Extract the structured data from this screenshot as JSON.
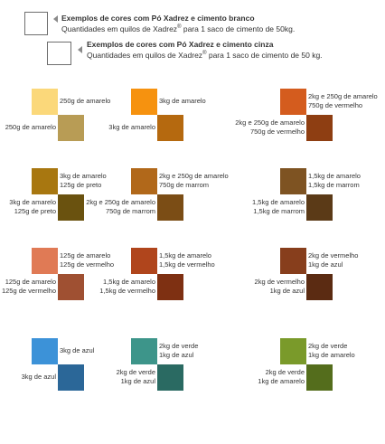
{
  "legend": [
    {
      "title": "Exemplos de cores com Pó Xadrez e cimento branco",
      "sub_before": "Quantidades em quilos de Xadrez",
      "sup": "®",
      "sub_after": " para 1 saco de cimento de 50kg."
    },
    {
      "title": "Exemplos de cores com Pó Xadrez e cimento cinza",
      "sub_before": "Quantidades em quilos de Xadrez",
      "sup": "®",
      "sub_after": " para 1 saco de cimento de 50 kg."
    }
  ],
  "swatches": [
    {
      "top_color": "#fbd87a",
      "bottom_color": "#b89c55",
      "top_lines": [
        "250g de amarelo"
      ],
      "bottom_lines": [
        "250g de amarelo"
      ]
    },
    {
      "top_color": "#f6920f",
      "bottom_color": "#b5690f",
      "top_lines": [
        "3kg de amarelo"
      ],
      "bottom_lines": [
        "3kg de amarelo"
      ]
    },
    {
      "top_color": "#d45c1e",
      "bottom_color": "#8e3e12",
      "top_lines": [
        "2kg e 250g de amarelo",
        "750g de vermelho"
      ],
      "bottom_lines": [
        "2kg e 250g de amarelo",
        "750g de vermelho"
      ]
    },
    {
      "top_color": "#a87710",
      "bottom_color": "#6a520f",
      "top_lines": [
        "3kg de amarelo",
        "125g de preto"
      ],
      "bottom_lines": [
        "3kg de amarelo",
        "125g de preto"
      ]
    },
    {
      "top_color": "#b1681a",
      "bottom_color": "#7b4d15",
      "top_lines": [
        "2kg e 250g de amarelo",
        "750g de marrom"
      ],
      "bottom_lines": [
        "2kg e 250g de amarelo",
        "750g de marrom"
      ]
    },
    {
      "top_color": "#7e5322",
      "bottom_color": "#5b3a17",
      "top_lines": [
        "1,5kg de amarelo",
        "1,5kg de marrom"
      ],
      "bottom_lines": [
        "1,5kg de amarelo",
        "1,5kg de marrom"
      ]
    },
    {
      "top_color": "#e07a55",
      "bottom_color": "#9f5032",
      "top_lines": [
        "125g de amarelo",
        "125g de vermelho"
      ],
      "bottom_lines": [
        "125g de amarelo",
        "125g de vermelho"
      ]
    },
    {
      "top_color": "#b0451c",
      "bottom_color": "#7e3012",
      "top_lines": [
        "1,5kg de amarelo",
        "1,5kg de vermelho"
      ],
      "bottom_lines": [
        "1,5kg de amarelo",
        "1,5kg de vermelho"
      ]
    },
    {
      "top_color": "#873e1c",
      "bottom_color": "#5b2b12",
      "top_lines": [
        "2kg de vermelho",
        "1kg de azul"
      ],
      "bottom_lines": [
        "2kg de vermelho",
        "1kg de azul"
      ]
    },
    {
      "top_color": "#3c92d8",
      "bottom_color": "#2b6798",
      "top_lines": [
        "3kg de azul"
      ],
      "bottom_lines": [
        "3kg de azul"
      ]
    },
    {
      "top_color": "#3d958a",
      "bottom_color": "#2a6a62",
      "top_lines": [
        "2kg de verde",
        "1kg de azul"
      ],
      "bottom_lines": [
        "2kg de verde",
        "1kg de azul"
      ]
    },
    {
      "top_color": "#7a9a2a",
      "bottom_color": "#546d1c",
      "top_lines": [
        "2kg de verde",
        "1kg de amarelo"
      ],
      "bottom_lines": [
        "2kg de verde",
        "1kg de amarelo"
      ]
    }
  ]
}
